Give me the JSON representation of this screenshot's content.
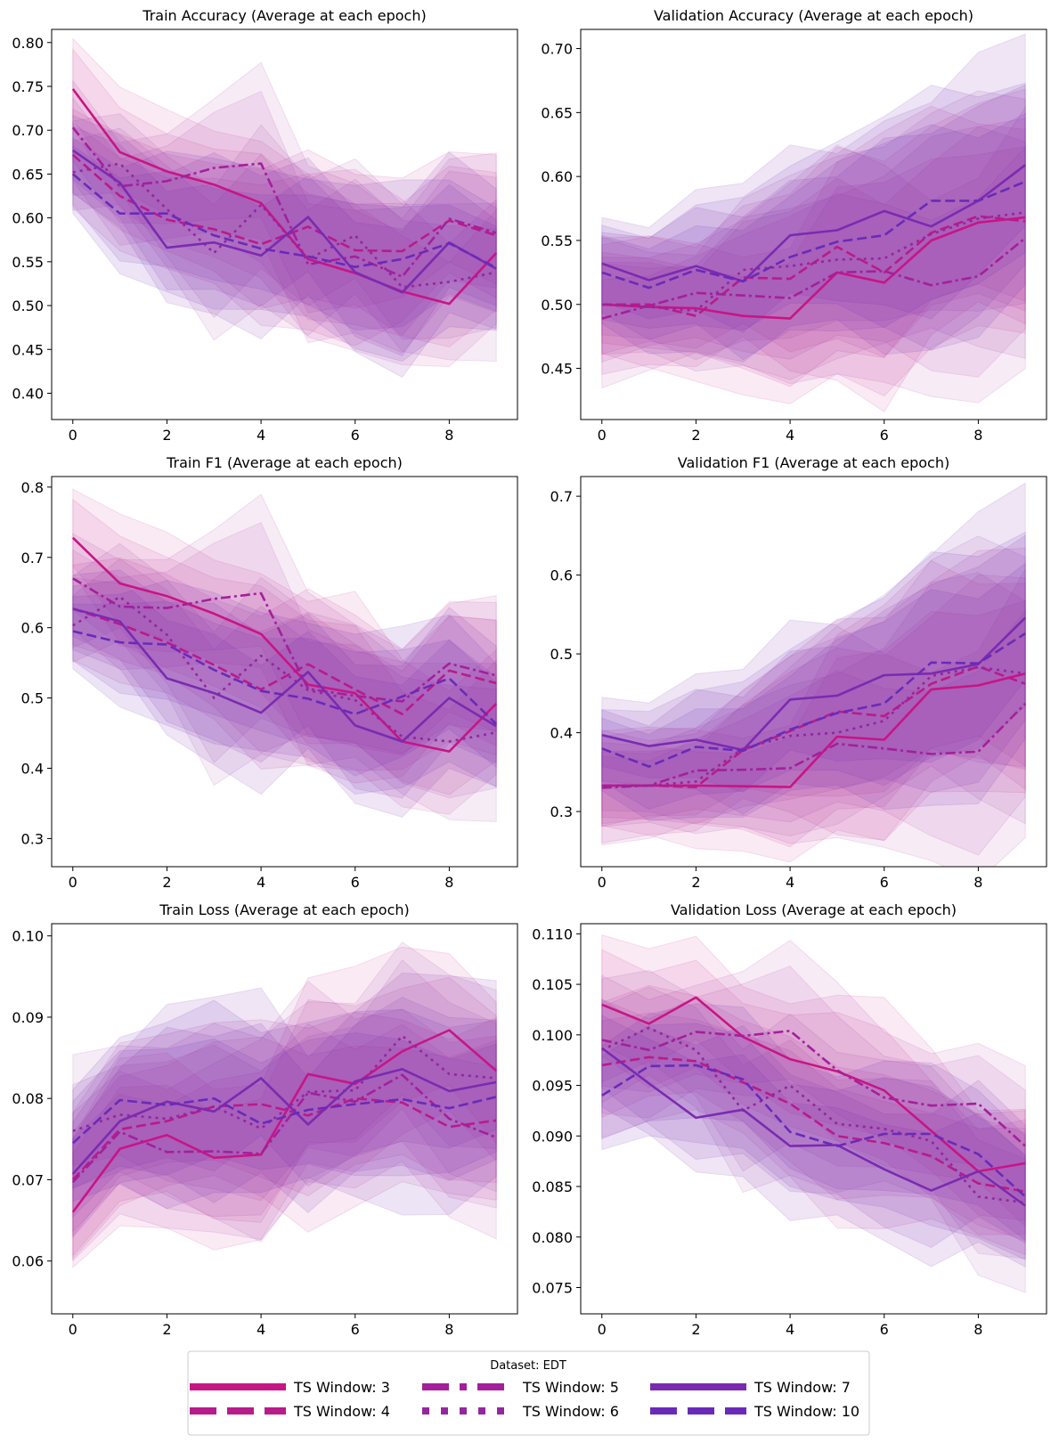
{
  "legend": {
    "title": "Dataset: EDT",
    "entries": [
      "TS Window: 3",
      "TS Window: 4",
      "TS Window: 5",
      "TS Window: 6",
      "TS Window: 7",
      "TS Window: 10"
    ]
  },
  "series_styles": [
    {
      "name": "TS Window: 3",
      "color": "#c71585",
      "dash": "solid"
    },
    {
      "name": "TS Window: 4",
      "color": "#b81b8a",
      "dash": "dashed"
    },
    {
      "name": "TS Window: 5",
      "color": "#a3209a",
      "dash": "dashdot"
    },
    {
      "name": "TS Window: 6",
      "color": "#92279e",
      "dash": "dotted"
    },
    {
      "name": "TS Window: 7",
      "color": "#7a2bb0",
      "dash": "solid"
    },
    {
      "name": "TS Window: 10",
      "color": "#6a2ab8",
      "dash": "dashed"
    }
  ],
  "chart_data": [
    {
      "type": "line",
      "title": "Train Accuracy (Average at each epoch)",
      "x": [
        0,
        1,
        2,
        3,
        4,
        5,
        6,
        7,
        8,
        9
      ],
      "xticks": [
        0,
        2,
        4,
        6,
        8
      ],
      "xlim": [
        -0.45,
        9.45
      ],
      "ylim": [
        0.37,
        0.815
      ],
      "yticks": [
        0.4,
        0.45,
        0.5,
        0.55,
        0.6,
        0.65,
        0.7,
        0.75,
        0.8
      ],
      "ytick_labels": [
        "0.40",
        "0.45",
        "0.50",
        "0.55",
        "0.60",
        "0.65",
        "0.70",
        "0.75",
        "0.80"
      ],
      "band_width": [
        0.05,
        0.06,
        0.07,
        0.08,
        0.09,
        0.09,
        0.09,
        0.09,
        0.08,
        0.08
      ],
      "series": [
        {
          "name": "TS Window: 3",
          "values": [
            0.747,
            0.675,
            0.653,
            0.638,
            0.617,
            0.553,
            0.537,
            0.516,
            0.502,
            0.56
          ]
        },
        {
          "name": "TS Window: 4",
          "values": [
            0.672,
            0.625,
            0.598,
            0.587,
            0.57,
            0.59,
            0.563,
            0.562,
            0.597,
            0.58
          ]
        },
        {
          "name": "TS Window: 5",
          "values": [
            0.703,
            0.636,
            0.642,
            0.657,
            0.662,
            0.547,
            0.556,
            0.533,
            0.599,
            0.583
          ]
        },
        {
          "name": "TS Window: 6",
          "values": [
            0.652,
            0.662,
            0.61,
            0.56,
            0.615,
            0.553,
            0.58,
            0.521,
            0.527,
            0.538
          ]
        },
        {
          "name": "TS Window: 7",
          "values": [
            0.677,
            0.64,
            0.566,
            0.572,
            0.557,
            0.601,
            0.538,
            0.515,
            0.572,
            0.542
          ]
        },
        {
          "name": "TS Window: 10",
          "values": [
            0.65,
            0.605,
            0.605,
            0.58,
            0.565,
            0.556,
            0.544,
            0.553,
            0.571,
            0.543
          ]
        }
      ]
    },
    {
      "type": "line",
      "title": "Validation Accuracy (Average at each epoch)",
      "x": [
        0,
        1,
        2,
        3,
        4,
        5,
        6,
        7,
        8,
        9
      ],
      "xticks": [
        0,
        2,
        4,
        6,
        8
      ],
      "xlim": [
        -0.45,
        9.45
      ],
      "ylim": [
        0.41,
        0.715
      ],
      "yticks": [
        0.45,
        0.5,
        0.55,
        0.6,
        0.65,
        0.7
      ],
      "ytick_labels": [
        "0.45",
        "0.50",
        "0.55",
        "0.60",
        "0.65",
        "0.70"
      ],
      "band_width": [
        0.045,
        0.045,
        0.05,
        0.06,
        0.07,
        0.08,
        0.09,
        0.09,
        0.09,
        0.09
      ],
      "series": [
        {
          "name": "TS Window: 3",
          "values": [
            0.5,
            0.498,
            0.497,
            0.491,
            0.489,
            0.525,
            0.517,
            0.55,
            0.564,
            0.568
          ]
        },
        {
          "name": "TS Window: 4",
          "values": [
            0.5,
            0.5,
            0.491,
            0.521,
            0.52,
            0.545,
            0.525,
            0.556,
            0.569,
            0.565
          ]
        },
        {
          "name": "TS Window: 5",
          "values": [
            0.489,
            0.499,
            0.509,
            0.507,
            0.505,
            0.525,
            0.526,
            0.515,
            0.522,
            0.552
          ]
        },
        {
          "name": "TS Window: 6",
          "values": [
            0.5,
            0.498,
            0.495,
            0.527,
            0.53,
            0.535,
            0.536,
            0.555,
            0.567,
            0.572
          ]
        },
        {
          "name": "TS Window: 7",
          "values": [
            0.532,
            0.519,
            0.53,
            0.518,
            0.554,
            0.558,
            0.573,
            0.561,
            0.581,
            0.609
          ]
        },
        {
          "name": "TS Window: 10",
          "values": [
            0.525,
            0.513,
            0.527,
            0.518,
            0.537,
            0.549,
            0.554,
            0.581,
            0.581,
            0.596
          ]
        }
      ]
    },
    {
      "type": "line",
      "title": "Train F1 (Average at each epoch)",
      "x": [
        0,
        1,
        2,
        3,
        4,
        5,
        6,
        7,
        8,
        9
      ],
      "xticks": [
        0,
        2,
        4,
        6,
        8
      ],
      "xlim": [
        -0.45,
        9.45
      ],
      "ylim": [
        0.26,
        0.815
      ],
      "yticks": [
        0.3,
        0.4,
        0.5,
        0.6,
        0.7,
        0.8
      ],
      "ytick_labels": [
        "0.3",
        "0.4",
        "0.5",
        "0.6",
        "0.7",
        "0.8"
      ],
      "band_width": [
        0.06,
        0.08,
        0.09,
        0.1,
        0.11,
        0.11,
        0.11,
        0.1,
        0.1,
        0.1
      ],
      "series": [
        {
          "name": "TS Window: 3",
          "values": [
            0.728,
            0.663,
            0.645,
            0.62,
            0.591,
            0.519,
            0.507,
            0.438,
            0.424,
            0.492
          ]
        },
        {
          "name": "TS Window: 4",
          "values": [
            0.627,
            0.605,
            0.579,
            0.547,
            0.512,
            0.548,
            0.512,
            0.477,
            0.539,
            0.521
          ]
        },
        {
          "name": "TS Window: 5",
          "values": [
            0.67,
            0.63,
            0.628,
            0.641,
            0.649,
            0.513,
            0.503,
            0.495,
            0.549,
            0.532
          ]
        },
        {
          "name": "TS Window: 6",
          "values": [
            0.603,
            0.644,
            0.59,
            0.5,
            0.56,
            0.511,
            0.497,
            0.445,
            0.438,
            0.451
          ]
        },
        {
          "name": "TS Window: 7",
          "values": [
            0.627,
            0.609,
            0.528,
            0.507,
            0.479,
            0.537,
            0.461,
            0.438,
            0.5,
            0.46
          ]
        },
        {
          "name": "TS Window: 10",
          "values": [
            0.595,
            0.579,
            0.576,
            0.54,
            0.51,
            0.499,
            0.477,
            0.502,
            0.528,
            0.463
          ]
        }
      ]
    },
    {
      "type": "line",
      "title": "Validation F1 (Average at each epoch)",
      "x": [
        0,
        1,
        2,
        3,
        4,
        5,
        6,
        7,
        8,
        9
      ],
      "xticks": [
        0,
        2,
        4,
        6,
        8
      ],
      "xlim": [
        -0.45,
        9.45
      ],
      "ylim": [
        0.23,
        0.725
      ],
      "yticks": [
        0.3,
        0.4,
        0.5,
        0.6,
        0.7
      ],
      "ytick_labels": [
        "0.3",
        "0.4",
        "0.5",
        "0.6",
        "0.7"
      ],
      "band_width": [
        0.06,
        0.06,
        0.07,
        0.08,
        0.1,
        0.12,
        0.13,
        0.14,
        0.15,
        0.15
      ],
      "series": [
        {
          "name": "TS Window: 3",
          "values": [
            0.333,
            0.333,
            0.333,
            0.332,
            0.331,
            0.395,
            0.391,
            0.455,
            0.46,
            0.475
          ]
        },
        {
          "name": "TS Window: 4",
          "values": [
            0.333,
            0.333,
            0.331,
            0.378,
            0.402,
            0.427,
            0.421,
            0.462,
            0.484,
            0.462
          ]
        },
        {
          "name": "TS Window: 5",
          "values": [
            0.33,
            0.333,
            0.352,
            0.353,
            0.355,
            0.386,
            0.38,
            0.373,
            0.376,
            0.437
          ]
        },
        {
          "name": "TS Window: 6",
          "values": [
            0.333,
            0.333,
            0.338,
            0.38,
            0.396,
            0.4,
            0.415,
            0.472,
            0.483,
            0.475
          ]
        },
        {
          "name": "TS Window: 7",
          "values": [
            0.397,
            0.383,
            0.391,
            0.378,
            0.442,
            0.447,
            0.473,
            0.475,
            0.487,
            0.546
          ]
        },
        {
          "name": "TS Window: 10",
          "values": [
            0.38,
            0.357,
            0.382,
            0.377,
            0.404,
            0.425,
            0.437,
            0.489,
            0.488,
            0.526
          ]
        }
      ]
    },
    {
      "type": "line",
      "title": "Train Loss (Average at each epoch)",
      "x": [
        0,
        1,
        2,
        3,
        4,
        5,
        6,
        7,
        8,
        9
      ],
      "xticks": [
        0,
        2,
        4,
        6,
        8
      ],
      "xlim": [
        -0.45,
        9.45
      ],
      "ylim": [
        0.0535,
        0.1015
      ],
      "yticks": [
        0.06,
        0.07,
        0.08,
        0.09,
        0.1
      ],
      "ytick_labels": [
        "0.06",
        "0.07",
        "0.08",
        "0.09",
        "0.10"
      ],
      "band_width": [
        0.008,
        0.009,
        0.01,
        0.011,
        0.011,
        0.011,
        0.011,
        0.011,
        0.011,
        0.011
      ],
      "series": [
        {
          "name": "TS Window: 3",
          "values": [
            0.066,
            0.0738,
            0.0755,
            0.0727,
            0.0731,
            0.083,
            0.0818,
            0.0858,
            0.0884,
            0.0834
          ]
        },
        {
          "name": "TS Window: 4",
          "values": [
            0.07,
            0.0762,
            0.0772,
            0.079,
            0.0793,
            0.0779,
            0.08,
            0.0795,
            0.0765,
            0.0773
          ]
        },
        {
          "name": "TS Window: 5",
          "values": [
            0.0697,
            0.0759,
            0.0734,
            0.0735,
            0.0732,
            0.0807,
            0.0796,
            0.0829,
            0.0775,
            0.0752
          ]
        },
        {
          "name": "TS Window: 6",
          "values": [
            0.076,
            0.078,
            0.0775,
            0.079,
            0.0763,
            0.0808,
            0.081,
            0.0877,
            0.083,
            0.0825
          ]
        },
        {
          "name": "TS Window: 7",
          "values": [
            0.0707,
            0.0772,
            0.0796,
            0.0784,
            0.0825,
            0.0768,
            0.0821,
            0.0836,
            0.0809,
            0.082
          ]
        },
        {
          "name": "TS Window: 10",
          "values": [
            0.0745,
            0.0798,
            0.0792,
            0.08,
            0.0769,
            0.0786,
            0.0793,
            0.0799,
            0.0788,
            0.0802
          ]
        }
      ]
    },
    {
      "type": "line",
      "title": "Validation Loss (Average at each epoch)",
      "x": [
        0,
        1,
        2,
        3,
        4,
        5,
        6,
        7,
        8,
        9
      ],
      "xticks": [
        0,
        2,
        4,
        6,
        8
      ],
      "xlim": [
        -0.45,
        9.45
      ],
      "ylim": [
        0.0724,
        0.111
      ],
      "yticks": [
        0.075,
        0.08,
        0.085,
        0.09,
        0.095,
        0.1,
        0.105,
        0.11
      ],
      "ytick_labels": [
        "0.075",
        "0.080",
        "0.085",
        "0.090",
        "0.095",
        "0.100",
        "0.105",
        "0.110"
      ],
      "band_width": [
        0.006,
        0.006,
        0.006,
        0.0065,
        0.007,
        0.007,
        0.007,
        0.007,
        0.007,
        0.007
      ],
      "series": [
        {
          "name": "TS Window: 3",
          "values": [
            0.103,
            0.1011,
            0.1037,
            0.0998,
            0.0976,
            0.0964,
            0.0945,
            0.0905,
            0.0865,
            0.0873
          ]
        },
        {
          "name": "TS Window: 4",
          "values": [
            0.097,
            0.0978,
            0.0974,
            0.0953,
            0.0932,
            0.09,
            0.0893,
            0.088,
            0.0853,
            0.0845
          ]
        },
        {
          "name": "TS Window: 5",
          "values": [
            0.0995,
            0.0985,
            0.1003,
            0.0999,
            0.1004,
            0.0965,
            0.0938,
            0.093,
            0.0932,
            0.089
          ]
        },
        {
          "name": "TS Window: 6",
          "values": [
            0.0985,
            0.1007,
            0.0985,
            0.0925,
            0.095,
            0.0912,
            0.0907,
            0.0895,
            0.084,
            0.0834
          ]
        },
        {
          "name": "TS Window: 7",
          "values": [
            0.0987,
            0.0952,
            0.0918,
            0.0926,
            0.089,
            0.0891,
            0.0867,
            0.0846,
            0.0865,
            0.0831
          ]
        },
        {
          "name": "TS Window: 10",
          "values": [
            0.094,
            0.0969,
            0.097,
            0.0956,
            0.0904,
            0.089,
            0.0902,
            0.0902,
            0.0882,
            0.084
          ]
        }
      ]
    }
  ]
}
